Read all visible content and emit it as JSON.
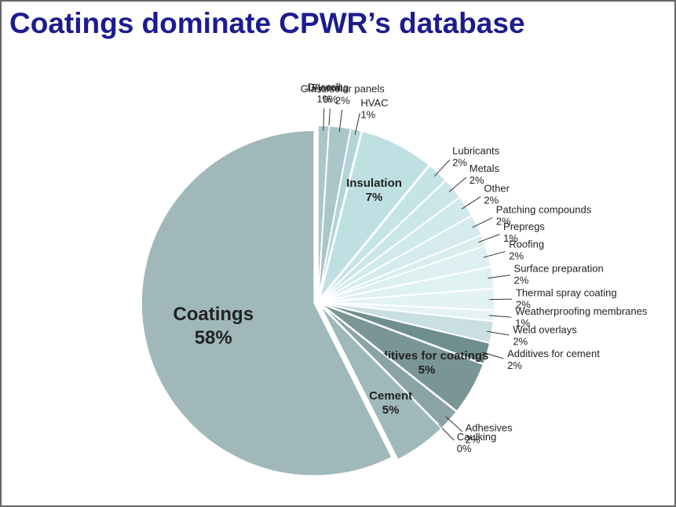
{
  "chart_data": {
    "type": "pie",
    "title": "Coatings dominate CPWR’s database",
    "categories": [
      "Drywall",
      "Flooring",
      "Glass/solar panels",
      "HVAC",
      "Insulation",
      "Lubricants",
      "Metals",
      "Other",
      "Patching compounds",
      "Prepregs",
      "Roofing",
      "Surface preparation",
      "Thermal spray coating",
      "Weatherproofing membranes",
      "Weld overlays",
      "Additives for cement",
      "Additives for coatings",
      "Adhesives",
      "Caulking",
      "Cement",
      "Coatings"
    ],
    "values": [
      1,
      0,
      2,
      1,
      7,
      2,
      2,
      2,
      2,
      1,
      2,
      2,
      2,
      1,
      2,
      2,
      5,
      2,
      0,
      5,
      58
    ],
    "value_labels": [
      "1%",
      "0%",
      "2%",
      "1%",
      "7%",
      "2%",
      "2%",
      "2%",
      "2%",
      "1%",
      "2%",
      "2%",
      "2%",
      "1%",
      "2%",
      "2%",
      "5%",
      "2%",
      "0%",
      "5%",
      "58%"
    ],
    "colors": [
      "#a9c7cb",
      "#b6d3d6",
      "#a9c7cb",
      "#b3d4d8",
      "#bfe0e3",
      "#c6e3e6",
      "#cbe6e9",
      "#d0e9eb",
      "#d5ebed",
      "#d9edef",
      "#ddeff1",
      "#e0f1f2",
      "#e3f2f3",
      "#e6f3f4",
      "#c9dfe1",
      "#6f8e8f",
      "#7a9596",
      "#8aa3a4",
      "#9bb3b4",
      "#9fb9bb",
      "#a0b8b9"
    ]
  }
}
